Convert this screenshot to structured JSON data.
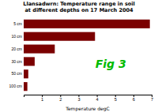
{
  "chart_data": {
    "type": "bar",
    "orientation": "horizontal",
    "title": "Llansadwrn: Temperature range in soil\nat different depths on 17 March 2004",
    "xlabel": "Temperature degC",
    "categories": [
      "5 cm",
      "10 cm",
      "20 cm",
      "30 cm",
      "50 cm",
      "100 cm"
    ],
    "values": [
      6.9,
      3.9,
      1.7,
      0.6,
      0.25,
      0.2
    ],
    "color": "#7b0000",
    "xlim": [
      0,
      7
    ],
    "xticks": [
      1,
      2,
      3,
      4,
      5,
      6,
      7
    ],
    "annotations": [
      {
        "text": "Fig 3",
        "color": "#00bb00"
      }
    ]
  }
}
